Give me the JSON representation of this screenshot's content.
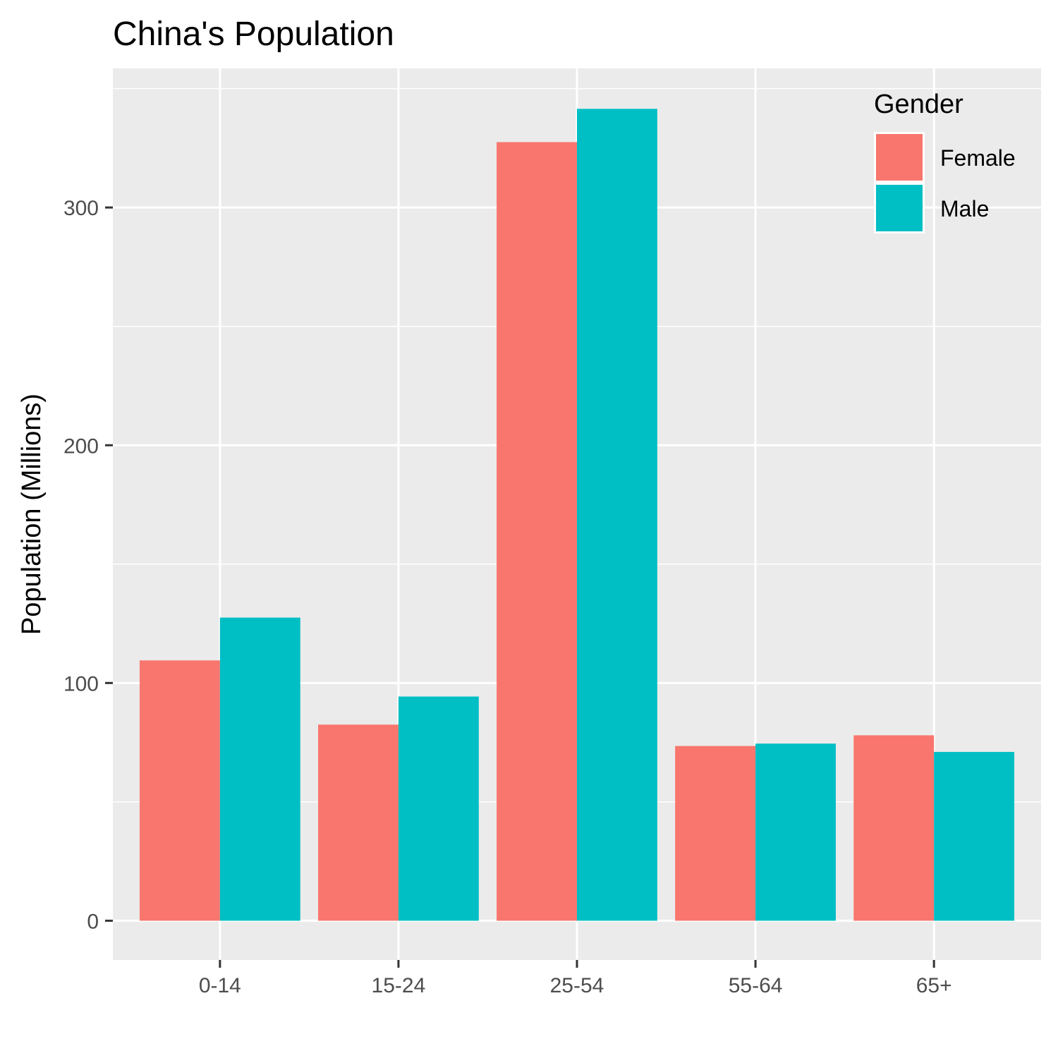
{
  "chart_data": {
    "type": "bar",
    "title": "China's Population",
    "xlabel": "",
    "ylabel": "Population (Millions)",
    "categories": [
      "0-14",
      "15-24",
      "25-54",
      "55-64",
      "65+"
    ],
    "series": [
      {
        "name": "Female",
        "color": "#F8766D",
        "values": [
          109.5,
          82.5,
          327.5,
          73.5,
          78
        ]
      },
      {
        "name": "Male",
        "color": "#00BFC4",
        "values": [
          127.5,
          94.3,
          341.5,
          74.5,
          71
        ]
      }
    ],
    "ylim": [
      -16.5,
      358.5
    ],
    "yticks": [
      0,
      100,
      200,
      300
    ],
    "yticks_labels": [
      "0",
      "100",
      "200",
      "300"
    ],
    "grid": true,
    "legend": {
      "title": "Gender",
      "position": "top-right"
    }
  }
}
